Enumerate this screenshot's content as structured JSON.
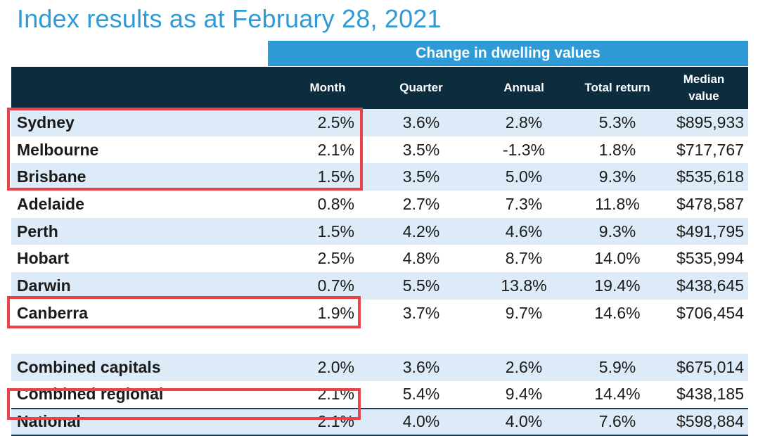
{
  "title": "Index results as at February 28, 2021",
  "band_label": "Change in dwelling values",
  "columns": {
    "city": "",
    "month": "Month",
    "quarter": "Quarter",
    "annual": "Annual",
    "total": "Total return",
    "median_line1": "Median",
    "median_line2": "value"
  },
  "rows": [
    {
      "city": "Sydney",
      "month": "2.5%",
      "quarter": "3.6%",
      "annual": "2.8%",
      "total": "5.3%",
      "median": "$895,933"
    },
    {
      "city": "Melbourne",
      "month": "2.1%",
      "quarter": "3.5%",
      "annual": "-1.3%",
      "total": "1.8%",
      "median": "$717,767"
    },
    {
      "city": "Brisbane",
      "month": "1.5%",
      "quarter": "3.5%",
      "annual": "5.0%",
      "total": "9.3%",
      "median": "$535,618"
    },
    {
      "city": "Adelaide",
      "month": "0.8%",
      "quarter": "2.7%",
      "annual": "7.3%",
      "total": "11.8%",
      "median": "$478,587"
    },
    {
      "city": "Perth",
      "month": "1.5%",
      "quarter": "4.2%",
      "annual": "4.6%",
      "total": "9.3%",
      "median": "$491,795"
    },
    {
      "city": "Hobart",
      "month": "2.5%",
      "quarter": "4.8%",
      "annual": "8.7%",
      "total": "14.0%",
      "median": "$535,994"
    },
    {
      "city": "Darwin",
      "month": "0.7%",
      "quarter": "5.5%",
      "annual": "13.8%",
      "total": "19.4%",
      "median": "$438,645"
    },
    {
      "city": "Canberra",
      "month": "1.9%",
      "quarter": "3.7%",
      "annual": "9.7%",
      "total": "14.6%",
      "median": "$706,454"
    }
  ],
  "summary_rows": [
    {
      "city": "Combined capitals",
      "month": "2.0%",
      "quarter": "3.6%",
      "annual": "2.6%",
      "total": "5.9%",
      "median": "$675,014"
    },
    {
      "city": "Combined regional",
      "month": "2.1%",
      "quarter": "5.4%",
      "annual": "9.4%",
      "total": "14.4%",
      "median": "$438,185"
    },
    {
      "city": "National",
      "month": "2.1%",
      "quarter": "4.0%",
      "annual": "4.0%",
      "total": "7.6%",
      "median": "$598,884"
    }
  ],
  "colors": {
    "title": "#2e9bd6",
    "band": "#2e9bd6",
    "header": "#0d2d3f",
    "stripe": "#dcebf7",
    "highlight": "#e8434a"
  }
}
